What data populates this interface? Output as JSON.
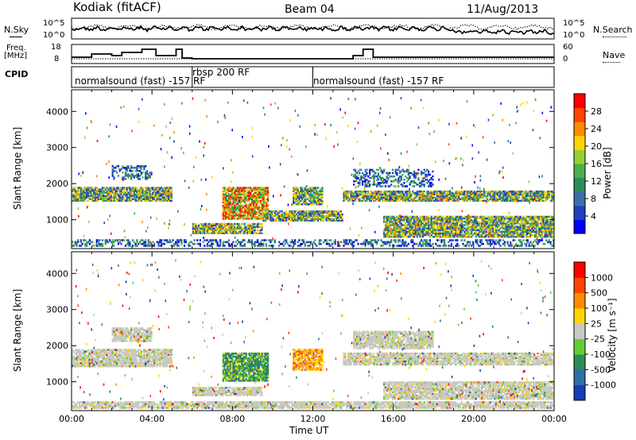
{
  "header": {
    "title": "Kodiak (fitACF)",
    "beam": "Beam 04",
    "date": "11/Aug/2013"
  },
  "top_panels": {
    "nsky_label": "N.Sky",
    "nsearch_label": "N.Search",
    "noise_ticks_left": [
      "10^5",
      "10^0"
    ],
    "noise_ticks_right": [
      "10^5",
      "10^0"
    ],
    "freq_label_1": "Freq.",
    "freq_label_2": "[MHz]",
    "freq_ticks": [
      "18",
      "8"
    ],
    "nave_ticks": [
      "60",
      "0"
    ],
    "nave_label": "Nave",
    "cpid_label": "CPID",
    "cpid_segments": [
      {
        "label": "normalsound (fast) -157 RF",
        "start": 0,
        "end": 6
      },
      {
        "label": "rbsp 200 RF",
        "start": 6,
        "end": 12
      },
      {
        "label": "normalsound (fast) -157 RF",
        "start": 12,
        "end": 24
      }
    ]
  },
  "chart_data": [
    {
      "type": "heatmap",
      "panel": "power",
      "xlabel": "",
      "ylabel": "Slant Range [km]",
      "xlim": [
        0,
        24
      ],
      "ylim": [
        200,
        4600
      ],
      "yticks": [
        1000,
        2000,
        3000,
        4000
      ],
      "colorbar": {
        "label": "Power [dB]",
        "ticks": [
          "28",
          "24",
          "20",
          "16",
          "12",
          "8",
          "4"
        ],
        "colors": [
          "#0000ff",
          "#2040c0",
          "#3a6fa8",
          "#2e8b57",
          "#4caf50",
          "#9acd32",
          "#ffd700",
          "#ff8c00",
          "#ff4500",
          "#ff0000"
        ]
      },
      "echo_regions": [
        {
          "t0": 0.0,
          "t1": 5.0,
          "r0": 1500,
          "r1": 1900,
          "level": "medium"
        },
        {
          "t0": 2.0,
          "t1": 4.0,
          "r0": 2100,
          "r1": 2500,
          "level": "low"
        },
        {
          "t0": 6.0,
          "t1": 9.5,
          "r0": 600,
          "r1": 900,
          "level": "medium"
        },
        {
          "t0": 7.5,
          "t1": 9.8,
          "r0": 1000,
          "r1": 1900,
          "level": "high"
        },
        {
          "t0": 9.5,
          "t1": 13.5,
          "r0": 950,
          "r1": 1250,
          "level": "medium"
        },
        {
          "t0": 11.0,
          "t1": 12.5,
          "r0": 1400,
          "r1": 1900,
          "level": "medium"
        },
        {
          "t0": 13.5,
          "t1": 24.0,
          "r0": 1500,
          "r1": 1800,
          "level": "medium"
        },
        {
          "t0": 14.0,
          "t1": 18.0,
          "r0": 1900,
          "r1": 2400,
          "level": "low"
        },
        {
          "t0": 15.5,
          "t1": 24.0,
          "r0": 500,
          "r1": 1100,
          "level": "medium"
        },
        {
          "t0": 0.0,
          "t1": 24.0,
          "r0": 250,
          "r1": 450,
          "level": "low"
        }
      ]
    },
    {
      "type": "heatmap",
      "panel": "velocity",
      "xlabel": "Time UT",
      "ylabel": "Slant Range [km]",
      "xlim": [
        0,
        24
      ],
      "ylim": [
        200,
        4600
      ],
      "xticks": [
        "00:00",
        "04:00",
        "08:00",
        "12:00",
        "16:00",
        "20:00",
        "00:00"
      ],
      "yticks": [
        1000,
        2000,
        3000,
        4000
      ],
      "colorbar": {
        "label": "Velocity [m s⁻¹]",
        "ticks": [
          "1000",
          "500",
          "100",
          "25",
          "-25",
          "-100",
          "-500",
          "-1000"
        ],
        "colors": [
          "#1a3cb4",
          "#2e6fa8",
          "#2e8b57",
          "#66cc33",
          "#c8c8c4",
          "#ffd700",
          "#ff8c00",
          "#ff4500",
          "#ff0000"
        ]
      },
      "echo_regions": [
        {
          "t0": 0.0,
          "t1": 5.0,
          "r0": 1400,
          "r1": 1900,
          "level": "ground"
        },
        {
          "t0": 2.0,
          "t1": 4.0,
          "r0": 2100,
          "r1": 2500,
          "level": "ground"
        },
        {
          "t0": 6.0,
          "t1": 9.5,
          "r0": 600,
          "r1": 850,
          "level": "ground"
        },
        {
          "t0": 7.5,
          "t1": 9.8,
          "r0": 1000,
          "r1": 1800,
          "level": "toward"
        },
        {
          "t0": 11.0,
          "t1": 12.5,
          "r0": 1300,
          "r1": 1900,
          "level": "away"
        },
        {
          "t0": 13.5,
          "t1": 24.0,
          "r0": 1450,
          "r1": 1800,
          "level": "ground"
        },
        {
          "t0": 14.0,
          "t1": 18.0,
          "r0": 1900,
          "r1": 2400,
          "level": "ground"
        },
        {
          "t0": 15.5,
          "t1": 24.0,
          "r0": 500,
          "r1": 1000,
          "level": "ground"
        },
        {
          "t0": 0.0,
          "t1": 24.0,
          "r0": 250,
          "r1": 450,
          "level": "ground"
        }
      ]
    }
  ]
}
